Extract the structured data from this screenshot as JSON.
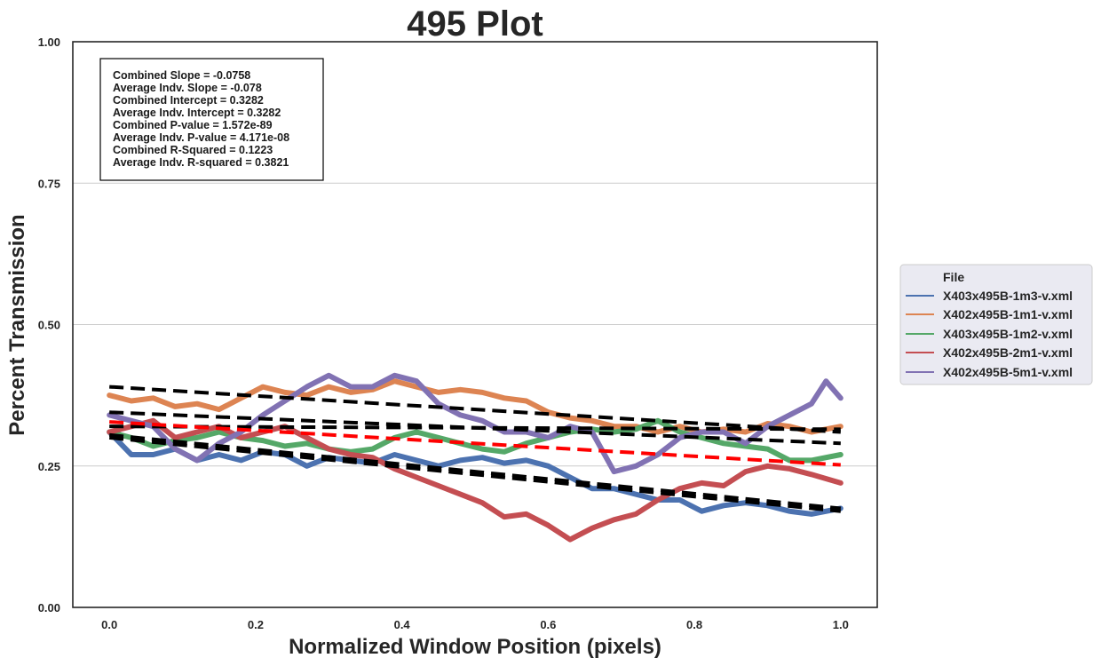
{
  "chart_data": {
    "type": "line",
    "title": "495 Plot",
    "xlabel": "Normalized Window Position (pixels)",
    "ylabel": "Percent Transmission",
    "xlim": [
      -0.05,
      1.05
    ],
    "ylim": [
      0.0,
      1.0
    ],
    "xticks": [
      0.0,
      0.2,
      0.4,
      0.6,
      0.8,
      1.0
    ],
    "xtick_labels": [
      "0.0",
      "0.2",
      "0.4",
      "0.6",
      "0.8",
      "1.0"
    ],
    "yticks": [
      0.0,
      0.25,
      0.5,
      0.75,
      1.0
    ],
    "ytick_labels": [
      "0.00",
      "0.25",
      "0.50",
      "0.75",
      "1.00"
    ],
    "grid": "horizontal",
    "legend": {
      "title": "File",
      "placement": "right-outside"
    },
    "series": [
      {
        "name": "X403x495B-1m3-v.xml",
        "color": "#4c72b0",
        "x": [
          0.0,
          0.03,
          0.06,
          0.09,
          0.12,
          0.15,
          0.18,
          0.21,
          0.24,
          0.27,
          0.3,
          0.33,
          0.36,
          0.39,
          0.42,
          0.45,
          0.48,
          0.51,
          0.54,
          0.57,
          0.6,
          0.63,
          0.66,
          0.69,
          0.72,
          0.75,
          0.78,
          0.81,
          0.84,
          0.87,
          0.9,
          0.93,
          0.96,
          1.0
        ],
        "y": [
          0.31,
          0.27,
          0.27,
          0.28,
          0.26,
          0.27,
          0.26,
          0.275,
          0.27,
          0.25,
          0.265,
          0.26,
          0.255,
          0.27,
          0.26,
          0.25,
          0.26,
          0.265,
          0.255,
          0.26,
          0.25,
          0.23,
          0.21,
          0.21,
          0.2,
          0.19,
          0.19,
          0.17,
          0.18,
          0.185,
          0.18,
          0.17,
          0.165,
          0.175
        ]
      },
      {
        "name": "X402x495B-1m1-v.xml",
        "color": "#dd8452",
        "x": [
          0.0,
          0.03,
          0.06,
          0.09,
          0.12,
          0.15,
          0.18,
          0.21,
          0.24,
          0.27,
          0.3,
          0.33,
          0.36,
          0.39,
          0.42,
          0.45,
          0.48,
          0.51,
          0.54,
          0.57,
          0.6,
          0.63,
          0.66,
          0.69,
          0.72,
          0.75,
          0.78,
          0.81,
          0.84,
          0.87,
          0.9,
          0.93,
          0.96,
          1.0
        ],
        "y": [
          0.375,
          0.365,
          0.37,
          0.355,
          0.36,
          0.35,
          0.37,
          0.39,
          0.38,
          0.375,
          0.39,
          0.38,
          0.385,
          0.4,
          0.39,
          0.38,
          0.385,
          0.38,
          0.37,
          0.365,
          0.345,
          0.335,
          0.33,
          0.32,
          0.32,
          0.31,
          0.32,
          0.31,
          0.315,
          0.31,
          0.325,
          0.32,
          0.31,
          0.32
        ]
      },
      {
        "name": "X403x495B-1m2-v.xml",
        "color": "#55a868",
        "x": [
          0.0,
          0.03,
          0.06,
          0.09,
          0.12,
          0.15,
          0.18,
          0.21,
          0.24,
          0.27,
          0.3,
          0.33,
          0.36,
          0.39,
          0.42,
          0.45,
          0.48,
          0.51,
          0.54,
          0.57,
          0.6,
          0.63,
          0.66,
          0.69,
          0.72,
          0.75,
          0.78,
          0.81,
          0.84,
          0.87,
          0.9,
          0.93,
          0.96,
          1.0
        ],
        "y": [
          0.31,
          0.3,
          0.285,
          0.295,
          0.3,
          0.31,
          0.3,
          0.295,
          0.285,
          0.29,
          0.28,
          0.275,
          0.28,
          0.3,
          0.31,
          0.3,
          0.29,
          0.28,
          0.275,
          0.29,
          0.3,
          0.31,
          0.315,
          0.31,
          0.315,
          0.33,
          0.31,
          0.3,
          0.29,
          0.285,
          0.28,
          0.26,
          0.26,
          0.27
        ]
      },
      {
        "name": "X402x495B-2m1-v.xml",
        "color": "#c44e52",
        "x": [
          0.0,
          0.03,
          0.06,
          0.09,
          0.12,
          0.15,
          0.18,
          0.21,
          0.24,
          0.27,
          0.3,
          0.33,
          0.36,
          0.39,
          0.42,
          0.45,
          0.48,
          0.51,
          0.54,
          0.57,
          0.6,
          0.63,
          0.66,
          0.69,
          0.72,
          0.75,
          0.78,
          0.81,
          0.84,
          0.87,
          0.9,
          0.93,
          0.96,
          1.0
        ],
        "y": [
          0.31,
          0.32,
          0.33,
          0.3,
          0.31,
          0.32,
          0.3,
          0.31,
          0.32,
          0.3,
          0.28,
          0.27,
          0.265,
          0.245,
          0.23,
          0.215,
          0.2,
          0.185,
          0.16,
          0.165,
          0.145,
          0.12,
          0.14,
          0.155,
          0.165,
          0.19,
          0.21,
          0.22,
          0.215,
          0.24,
          0.25,
          0.245,
          0.235,
          0.22
        ]
      },
      {
        "name": "X402x495B-5m1-v.xml",
        "color": "#8172b3",
        "x": [
          0.0,
          0.03,
          0.06,
          0.09,
          0.12,
          0.15,
          0.18,
          0.21,
          0.24,
          0.27,
          0.3,
          0.33,
          0.36,
          0.39,
          0.42,
          0.45,
          0.48,
          0.51,
          0.54,
          0.57,
          0.6,
          0.63,
          0.66,
          0.69,
          0.72,
          0.75,
          0.78,
          0.81,
          0.84,
          0.87,
          0.9,
          0.93,
          0.96,
          0.98,
          1.0
        ],
        "y": [
          0.34,
          0.33,
          0.32,
          0.28,
          0.26,
          0.29,
          0.31,
          0.34,
          0.365,
          0.39,
          0.41,
          0.39,
          0.39,
          0.41,
          0.4,
          0.36,
          0.34,
          0.33,
          0.31,
          0.31,
          0.3,
          0.32,
          0.31,
          0.24,
          0.25,
          0.27,
          0.3,
          0.31,
          0.31,
          0.29,
          0.32,
          0.34,
          0.36,
          0.4,
          0.37
        ]
      }
    ],
    "fit_lines": [
      {
        "kind": "individual",
        "color": "#000000",
        "x": [
          0.0,
          1.0
        ],
        "y": [
          0.39,
          0.31
        ]
      },
      {
        "kind": "individual",
        "color": "#000000",
        "x": [
          0.0,
          1.0
        ],
        "y": [
          0.345,
          0.29
        ]
      },
      {
        "kind": "individual",
        "color": "#000000",
        "x": [
          0.0,
          1.0
        ],
        "y": [
          0.305,
          0.175
        ]
      },
      {
        "kind": "individual",
        "color": "#000000",
        "x": [
          0.0,
          1.0
        ],
        "y": [
          0.3,
          0.17
        ]
      },
      {
        "kind": "individual",
        "color": "#000000",
        "x": [
          0.0,
          1.0
        ],
        "y": [
          0.32,
          0.315
        ]
      },
      {
        "kind": "combined",
        "color": "#ff0000",
        "x": [
          0.0,
          1.0
        ],
        "y": [
          0.328,
          0.252
        ]
      }
    ],
    "annotations": [
      "Combined Slope = -0.0758",
      "Average Indv. Slope = -0.078",
      "Combined Intercept = 0.3282",
      "Average Indv. Intercept = 0.3282",
      "Combined P-value = 1.572e-89",
      "Average Indv. P-value = 4.171e-08",
      "Combined R-Squared = 0.1223",
      "Average Indv. R-squared = 0.3821"
    ]
  }
}
